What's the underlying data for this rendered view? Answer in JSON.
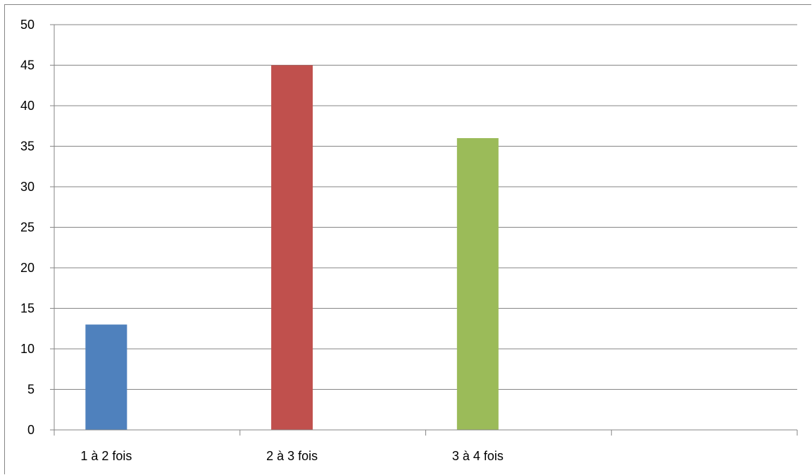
{
  "chart_data": {
    "type": "bar",
    "categories": [
      "1 à 2 fois",
      "2 à 3 fois",
      "3 à 4 fois",
      ""
    ],
    "values": [
      13,
      45,
      36,
      null
    ],
    "colors": [
      "#4F81BD",
      "#C0504D",
      "#9BBB59"
    ],
    "title": "",
    "xlabel": "",
    "ylabel": "",
    "ylim": [
      0,
      50
    ],
    "yticks": [
      0,
      5,
      10,
      15,
      20,
      25,
      30,
      35,
      40,
      45,
      50
    ],
    "grid": true,
    "legend": "none"
  }
}
